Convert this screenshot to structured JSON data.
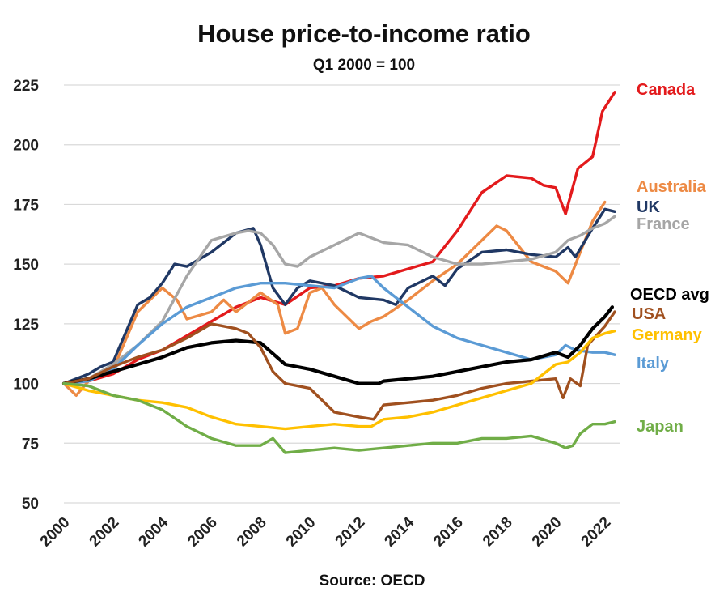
{
  "chart_data": {
    "type": "line",
    "title": "House price-to-income ratio",
    "subtitle": "Q1 2000 = 100",
    "source": "Source:  OECD",
    "xlim": [
      2000,
      2022.5
    ],
    "ylim": [
      50,
      225
    ],
    "x_ticks": [
      2000,
      2002,
      2004,
      2006,
      2008,
      2010,
      2012,
      2014,
      2016,
      2018,
      2020,
      2022
    ],
    "y_ticks": [
      50,
      75,
      100,
      125,
      150,
      175,
      200,
      225
    ],
    "grid": "horizontal",
    "legend": "labels at right end of lines",
    "series": [
      {
        "name": "Canada",
        "color": "#e31a1c",
        "points": [
          [
            2000,
            100
          ],
          [
            2001,
            101
          ],
          [
            2002,
            104
          ],
          [
            2003,
            110
          ],
          [
            2004,
            114
          ],
          [
            2005,
            120
          ],
          [
            2006,
            126
          ],
          [
            2007,
            132
          ],
          [
            2008,
            136
          ],
          [
            2009,
            133
          ],
          [
            2010,
            140
          ],
          [
            2011,
            141
          ],
          [
            2012,
            144
          ],
          [
            2013,
            145
          ],
          [
            2014,
            148
          ],
          [
            2015,
            151
          ],
          [
            2016,
            164
          ],
          [
            2017,
            180
          ],
          [
            2018,
            187
          ],
          [
            2019,
            186
          ],
          [
            2019.5,
            183
          ],
          [
            2020,
            182
          ],
          [
            2020.4,
            171
          ],
          [
            2020.9,
            190
          ],
          [
            2021.5,
            195
          ],
          [
            2021.9,
            214
          ],
          [
            2022.4,
            222
          ]
        ]
      },
      {
        "name": "Australia",
        "color": "#ed8a44",
        "points": [
          [
            2000,
            100
          ],
          [
            2000.5,
            95
          ],
          [
            2001,
            101
          ],
          [
            2002,
            106
          ],
          [
            2003,
            130
          ],
          [
            2004,
            140
          ],
          [
            2004.6,
            135
          ],
          [
            2005,
            127
          ],
          [
            2006,
            130
          ],
          [
            2006.5,
            135
          ],
          [
            2007,
            130
          ],
          [
            2008,
            138
          ],
          [
            2008.7,
            133
          ],
          [
            2009,
            121
          ],
          [
            2009.5,
            123
          ],
          [
            2010,
            138
          ],
          [
            2010.5,
            140
          ],
          [
            2011,
            133
          ],
          [
            2012,
            123
          ],
          [
            2012.5,
            126
          ],
          [
            2013,
            128
          ],
          [
            2014,
            135
          ],
          [
            2015,
            143
          ],
          [
            2016,
            150
          ],
          [
            2017,
            160
          ],
          [
            2017.6,
            166
          ],
          [
            2018,
            164
          ],
          [
            2019,
            151
          ],
          [
            2020,
            147
          ],
          [
            2020.5,
            142
          ],
          [
            2021,
            155
          ],
          [
            2021.5,
            168
          ],
          [
            2022,
            176
          ]
        ]
      },
      {
        "name": "UK",
        "color": "#203864",
        "points": [
          [
            2000,
            100
          ],
          [
            2001,
            104
          ],
          [
            2001.5,
            107
          ],
          [
            2002,
            109
          ],
          [
            2003,
            133
          ],
          [
            2003.5,
            136
          ],
          [
            2004,
            142
          ],
          [
            2004.5,
            150
          ],
          [
            2005,
            149
          ],
          [
            2006,
            155
          ],
          [
            2007,
            163
          ],
          [
            2007.7,
            165
          ],
          [
            2008,
            158
          ],
          [
            2008.5,
            140
          ],
          [
            2009,
            133
          ],
          [
            2009.5,
            140
          ],
          [
            2010,
            143
          ],
          [
            2011,
            141
          ],
          [
            2012,
            136
          ],
          [
            2013,
            135
          ],
          [
            2013.5,
            133
          ],
          [
            2014,
            140
          ],
          [
            2015,
            145
          ],
          [
            2015.5,
            141
          ],
          [
            2016,
            148
          ],
          [
            2017,
            155
          ],
          [
            2018,
            156
          ],
          [
            2019,
            154
          ],
          [
            2020,
            153
          ],
          [
            2020.5,
            157
          ],
          [
            2020.8,
            153
          ],
          [
            2021.5,
            165
          ],
          [
            2022,
            173
          ],
          [
            2022.4,
            172
          ]
        ]
      },
      {
        "name": "France",
        "color": "#a6a6a6",
        "points": [
          [
            2000,
            100
          ],
          [
            2001,
            102
          ],
          [
            2002,
            108
          ],
          [
            2003,
            116
          ],
          [
            2004,
            126
          ],
          [
            2005,
            145
          ],
          [
            2006,
            160
          ],
          [
            2007,
            163
          ],
          [
            2007.5,
            164
          ],
          [
            2008,
            163
          ],
          [
            2008.5,
            158
          ],
          [
            2009,
            150
          ],
          [
            2009.5,
            149
          ],
          [
            2010,
            153
          ],
          [
            2011,
            158
          ],
          [
            2012,
            163
          ],
          [
            2013,
            159
          ],
          [
            2014,
            158
          ],
          [
            2015,
            153
          ],
          [
            2016,
            150
          ],
          [
            2017,
            150
          ],
          [
            2018,
            151
          ],
          [
            2019,
            152
          ],
          [
            2020,
            155
          ],
          [
            2020.5,
            160
          ],
          [
            2021,
            162
          ],
          [
            2021.5,
            165
          ],
          [
            2022,
            167
          ],
          [
            2022.4,
            170
          ]
        ]
      },
      {
        "name": "Italy",
        "color": "#5b9bd5",
        "points": [
          [
            2000,
            100
          ],
          [
            2001,
            101
          ],
          [
            2002,
            106
          ],
          [
            2003,
            116
          ],
          [
            2004,
            125
          ],
          [
            2005,
            132
          ],
          [
            2006,
            136
          ],
          [
            2007,
            140
          ],
          [
            2008,
            142
          ],
          [
            2009,
            142
          ],
          [
            2010,
            141
          ],
          [
            2011,
            140
          ],
          [
            2012,
            144
          ],
          [
            2012.5,
            145
          ],
          [
            2013,
            140
          ],
          [
            2014,
            132
          ],
          [
            2015,
            124
          ],
          [
            2016,
            119
          ],
          [
            2017,
            116
          ],
          [
            2018,
            113
          ],
          [
            2019,
            110
          ],
          [
            2020,
            112
          ],
          [
            2020.4,
            116
          ],
          [
            2020.8,
            114
          ],
          [
            2021.5,
            113
          ],
          [
            2022,
            113
          ],
          [
            2022.4,
            112
          ]
        ]
      },
      {
        "name": "OECD avg",
        "color": "#000000",
        "points": [
          [
            2000,
            100
          ],
          [
            2001,
            102
          ],
          [
            2002,
            105
          ],
          [
            2003,
            108
          ],
          [
            2004,
            111
          ],
          [
            2005,
            115
          ],
          [
            2006,
            117
          ],
          [
            2007,
            118
          ],
          [
            2008,
            117
          ],
          [
            2009,
            108
          ],
          [
            2010,
            106
          ],
          [
            2011,
            103
          ],
          [
            2012,
            100
          ],
          [
            2012.8,
            100
          ],
          [
            2013,
            101
          ],
          [
            2014,
            102
          ],
          [
            2015,
            103
          ],
          [
            2016,
            105
          ],
          [
            2017,
            107
          ],
          [
            2018,
            109
          ],
          [
            2019,
            110
          ],
          [
            2020,
            113
          ],
          [
            2020.5,
            111
          ],
          [
            2021,
            116
          ],
          [
            2021.5,
            123
          ],
          [
            2022,
            128
          ],
          [
            2022.3,
            132
          ]
        ]
      },
      {
        "name": "USA",
        "color": "#a0501f",
        "points": [
          [
            2000,
            100
          ],
          [
            2001,
            102
          ],
          [
            2002,
            107
          ],
          [
            2003,
            111
          ],
          [
            2004,
            114
          ],
          [
            2005,
            119
          ],
          [
            2006,
            125
          ],
          [
            2007,
            123
          ],
          [
            2007.5,
            121
          ],
          [
            2008,
            115
          ],
          [
            2008.5,
            105
          ],
          [
            2009,
            100
          ],
          [
            2010,
            98
          ],
          [
            2011,
            88
          ],
          [
            2012,
            86
          ],
          [
            2012.6,
            85
          ],
          [
            2013,
            91
          ],
          [
            2014,
            92
          ],
          [
            2015,
            93
          ],
          [
            2016,
            95
          ],
          [
            2017,
            98
          ],
          [
            2018,
            100
          ],
          [
            2019,
            101
          ],
          [
            2020,
            102
          ],
          [
            2020.3,
            94
          ],
          [
            2020.6,
            102
          ],
          [
            2021,
            99
          ],
          [
            2021.3,
            116
          ],
          [
            2022,
            124
          ],
          [
            2022.4,
            130
          ]
        ]
      },
      {
        "name": "Germany",
        "color": "#ffc000",
        "points": [
          [
            2000,
            100
          ],
          [
            2001,
            97
          ],
          [
            2002,
            95
          ],
          [
            2003,
            93
          ],
          [
            2004,
            92
          ],
          [
            2005,
            90
          ],
          [
            2006,
            86
          ],
          [
            2007,
            83
          ],
          [
            2008,
            82
          ],
          [
            2009,
            81
          ],
          [
            2010,
            82
          ],
          [
            2011,
            83
          ],
          [
            2012,
            82
          ],
          [
            2012.5,
            82
          ],
          [
            2013,
            85
          ],
          [
            2014,
            86
          ],
          [
            2015,
            88
          ],
          [
            2016,
            91
          ],
          [
            2017,
            94
          ],
          [
            2018,
            97
          ],
          [
            2019,
            100
          ],
          [
            2020,
            108
          ],
          [
            2020.5,
            109
          ],
          [
            2021,
            113
          ],
          [
            2021.5,
            119
          ],
          [
            2022,
            121
          ],
          [
            2022.4,
            122
          ]
        ]
      },
      {
        "name": "Japan",
        "color": "#70ad47",
        "points": [
          [
            2000,
            100
          ],
          [
            2001,
            99
          ],
          [
            2002,
            95
          ],
          [
            2003,
            93
          ],
          [
            2004,
            89
          ],
          [
            2005,
            82
          ],
          [
            2006,
            77
          ],
          [
            2007,
            74
          ],
          [
            2008,
            74
          ],
          [
            2008.5,
            77
          ],
          [
            2009,
            71
          ],
          [
            2010,
            72
          ],
          [
            2011,
            73
          ],
          [
            2012,
            72
          ],
          [
            2013,
            73
          ],
          [
            2014,
            74
          ],
          [
            2015,
            75
          ],
          [
            2016,
            75
          ],
          [
            2017,
            77
          ],
          [
            2018,
            77
          ],
          [
            2019,
            78
          ],
          [
            2020,
            75
          ],
          [
            2020.4,
            73
          ],
          [
            2020.7,
            74
          ],
          [
            2021,
            79
          ],
          [
            2021.5,
            83
          ],
          [
            2022,
            83
          ],
          [
            2022.4,
            84
          ]
        ]
      }
    ]
  }
}
